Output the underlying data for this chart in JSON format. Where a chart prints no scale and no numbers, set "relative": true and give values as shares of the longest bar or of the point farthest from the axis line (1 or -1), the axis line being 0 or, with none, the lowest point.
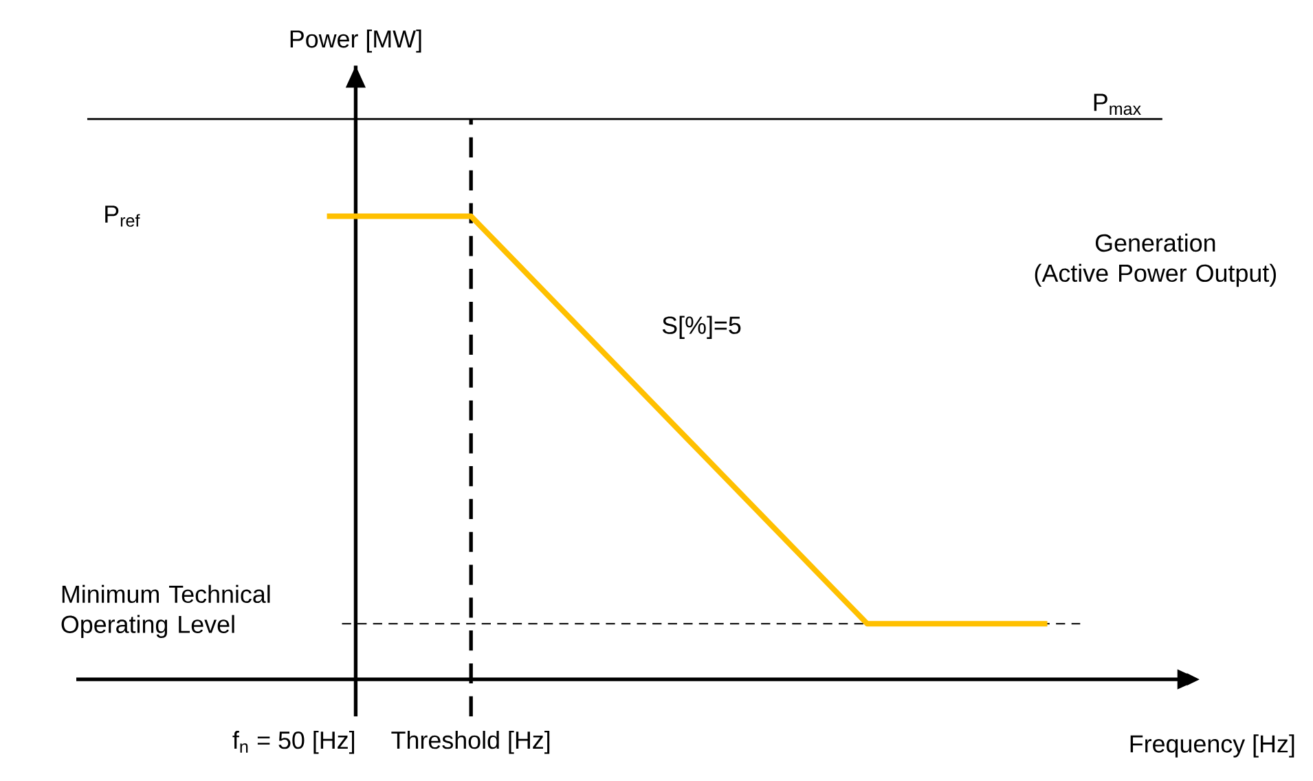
{
  "chart_data": {
    "type": "line",
    "xlabel": "Frequency [Hz]",
    "relative": true,
    "marker": "none",
    "categories": [
      null,
      null,
      null,
      null,
      null,
      null,
      null,
      null,
      null,
      null,
      null,
      null,
      null,
      null,
      null,
      null,
      null,
      null,
      null,
      null,
      null
    ],
    "series": [
      {
        "color": "#ffc000",
        "values": [
          1,
          1,
          1,
          1,
          1,
          0.92,
          0.84,
          0.76,
          0.68,
          0.6,
          0.52,
          0.44,
          0.36,
          0.28,
          0.2,
          0.12,
          0.12,
          0.12,
          0.12,
          0.12,
          0.12
        ]
      }
    ],
    "ref_lines": [
      {
        "axis": "y",
        "value": 1.21,
        "label": "P$_{max}$",
        "line_style": "solid"
      },
      {
        "axis": "y",
        "value": 0.12,
        "label": "Minimum Technical Operating Level",
        "line_style": "dashed"
      }
    ],
    "annotations": [
      "P$_{ref}$",
      "S[%]=5",
      "f$_{n}$ = 50 [Hz]",
      "Generation (Active Power Output)",
      "Threshold [Hz]",
      "Power [MW]"
    ]
  }
}
